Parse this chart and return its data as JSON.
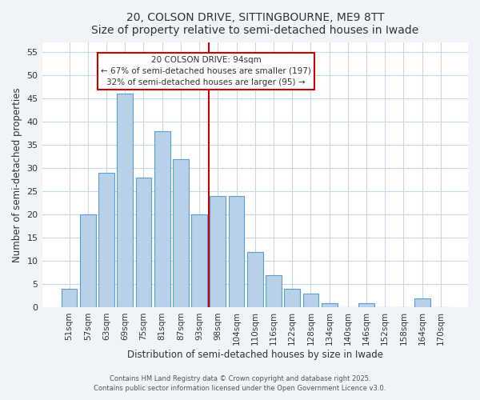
{
  "title": "20, COLSON DRIVE, SITTINGBOURNE, ME9 8TT",
  "subtitle": "Size of property relative to semi-detached houses in Iwade",
  "xlabel": "Distribution of semi-detached houses by size in Iwade",
  "ylabel": "Number of semi-detached properties",
  "bar_labels": [
    "51sqm",
    "57sqm",
    "63sqm",
    "69sqm",
    "75sqm",
    "81sqm",
    "87sqm",
    "93sqm",
    "98sqm",
    "104sqm",
    "110sqm",
    "116sqm",
    "122sqm",
    "128sqm",
    "134sqm",
    "140sqm",
    "146sqm",
    "152sqm",
    "158sqm",
    "164sqm",
    "170sqm"
  ],
  "bar_heights": [
    4,
    20,
    29,
    46,
    28,
    38,
    32,
    20,
    24,
    24,
    12,
    7,
    4,
    3,
    1,
    0,
    1,
    0,
    0,
    2,
    0
  ],
  "bar_color": "#b8d0e8",
  "bar_edge_color": "#5a9fd4",
  "vline_x": 7.5,
  "vline_color": "#cc0000",
  "annotation_title": "20 COLSON DRIVE: 94sqm",
  "annotation_line1": "← 67% of semi-detached houses are smaller (197)",
  "annotation_line2": "32% of semi-detached houses are larger (95) →",
  "annotation_box_color": "#ffffff",
  "annotation_box_edge": "#cc0000",
  "ylim": [
    0,
    57
  ],
  "yticks": [
    0,
    5,
    10,
    15,
    20,
    25,
    30,
    35,
    40,
    45,
    50,
    55
  ],
  "footer1": "Contains HM Land Registry data © Crown copyright and database right 2025.",
  "footer2": "Contains public sector information licensed under the Open Government Licence v3.0.",
  "bg_color": "#f0f4f8",
  "plot_bg_color": "#ffffff",
  "grid_color": "#c8d8e8"
}
